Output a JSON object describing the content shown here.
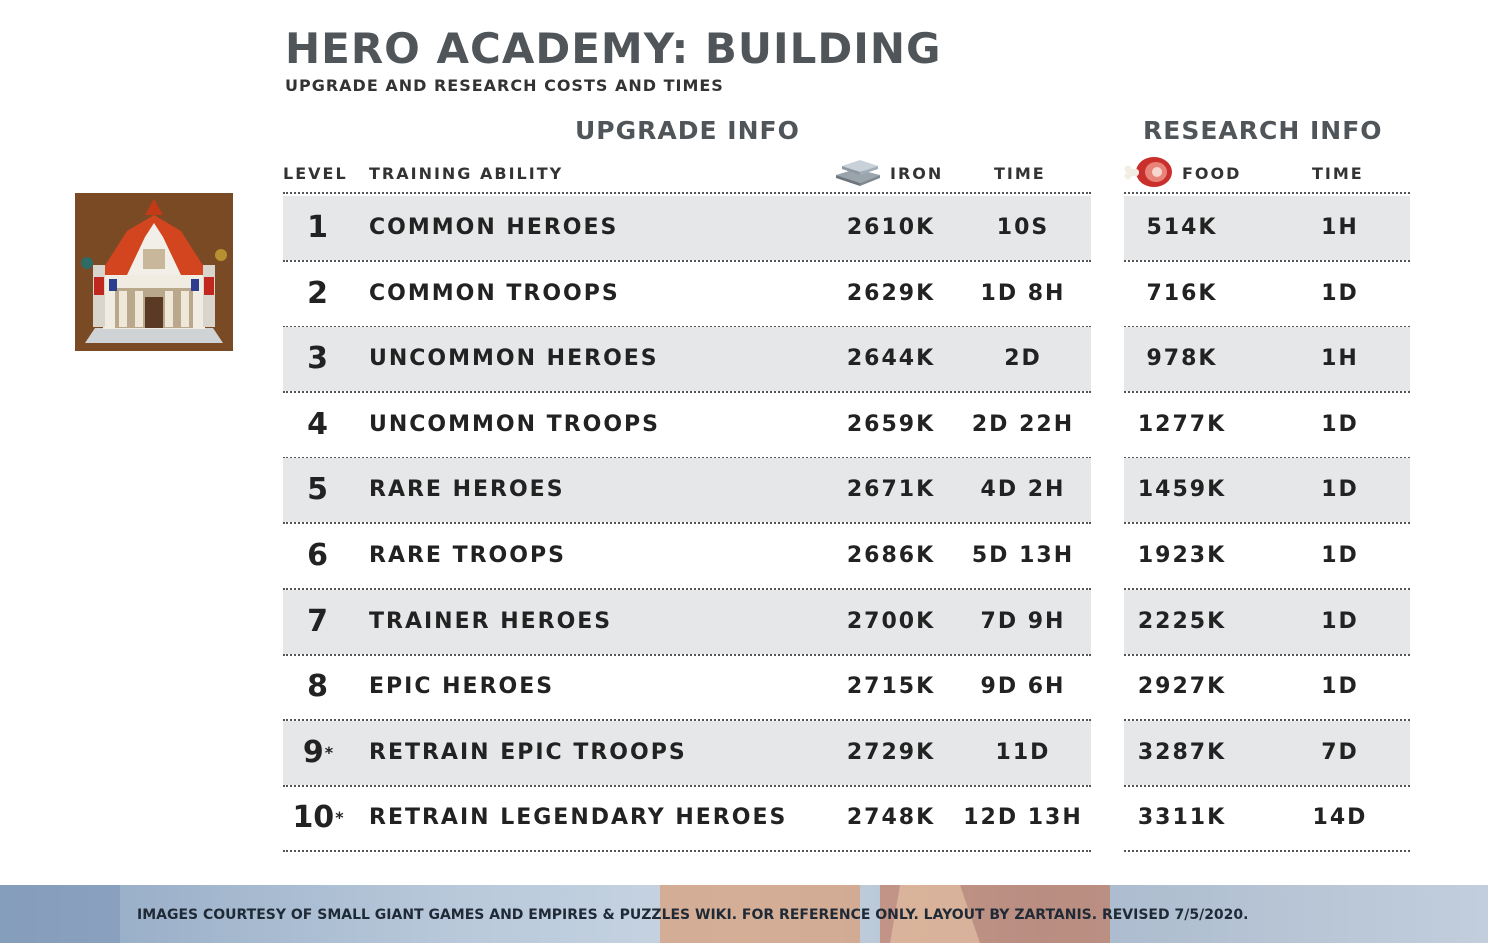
{
  "header": {
    "title": "HERO ACADEMY: BUILDING",
    "subtitle": "UPGRADE AND RESEARCH COSTS AND TIMES"
  },
  "sections": {
    "upgrade": "UPGRADE INFO",
    "research": "RESEARCH INFO"
  },
  "columns": {
    "level": "LEVEL",
    "ability": "TRAINING ABILITY",
    "iron": "IRON",
    "upgrade_time": "TIME",
    "food": "FOOD",
    "research_time": "TIME"
  },
  "icons": {
    "iron": "iron-ingots-icon",
    "food": "meat-food-icon",
    "building": "hero-academy-building-image"
  },
  "rows": [
    {
      "level": "1",
      "star": "",
      "ability": "COMMON HEROES",
      "iron": "2610K",
      "time": "10S",
      "food": "514K",
      "rtime": "1H"
    },
    {
      "level": "2",
      "star": "",
      "ability": "COMMON TROOPS",
      "iron": "2629K",
      "time": "1D 8H",
      "food": "716K",
      "rtime": "1D"
    },
    {
      "level": "3",
      "star": "",
      "ability": "UNCOMMON HEROES",
      "iron": "2644K",
      "time": "2D",
      "food": "978K",
      "rtime": "1H"
    },
    {
      "level": "4",
      "star": "",
      "ability": "UNCOMMON TROOPS",
      "iron": "2659K",
      "time": "2D 22H",
      "food": "1277K",
      "rtime": "1D"
    },
    {
      "level": "5",
      "star": "",
      "ability": "RARE HEROES",
      "iron": "2671K",
      "time": "4D 2H",
      "food": "1459K",
      "rtime": "1D"
    },
    {
      "level": "6",
      "star": "",
      "ability": "RARE TROOPS",
      "iron": "2686K",
      "time": "5D 13H",
      "food": "1923K",
      "rtime": "1D"
    },
    {
      "level": "7",
      "star": "",
      "ability": "TRAINER HEROES",
      "iron": "2700K",
      "time": "7D 9H",
      "food": "2225K",
      "rtime": "1D"
    },
    {
      "level": "8",
      "star": "",
      "ability": "EPIC HEROES",
      "iron": "2715K",
      "time": "9D 6H",
      "food": "2927K",
      "rtime": "1D"
    },
    {
      "level": "9",
      "star": "*",
      "ability": "RETRAIN EPIC TROOPS",
      "iron": "2729K",
      "time": "11D",
      "food": "3287K",
      "rtime": "7D"
    },
    {
      "level": "10",
      "star": "*",
      "ability": "RETRAIN LEGENDARY HEROES",
      "iron": "2748K",
      "time": "12D 13H",
      "food": "3311K",
      "rtime": "14D"
    }
  ],
  "footer": {
    "text": "IMAGES COURTESY OF SMALL GIANT GAMES AND EMPIRES & PUZZLES WIKI. FOR REFERENCE ONLY. LAYOUT BY ZARTANIS. REVISED 7/5/2020."
  }
}
